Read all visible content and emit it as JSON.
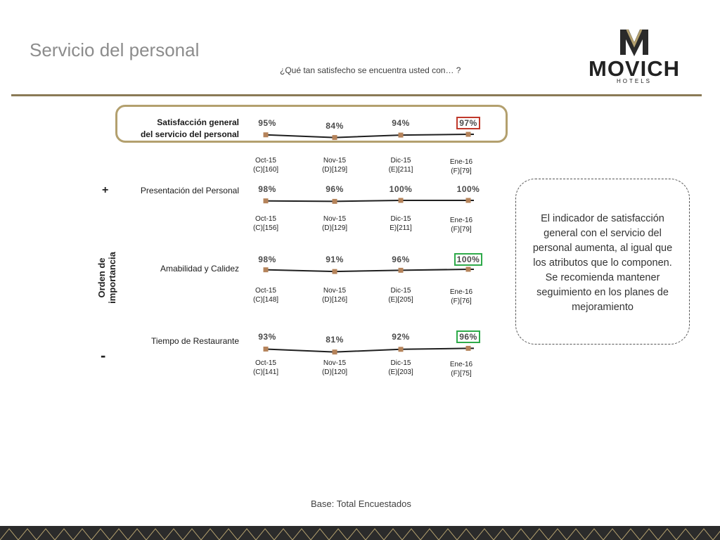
{
  "header": {
    "title": "Servicio del personal",
    "subtitle": "¿Qué tan satisfecho se encuentra usted con… ?"
  },
  "logo": {
    "name": "MOVICH",
    "sub": "HOTELS"
  },
  "side": {
    "axis_title": "Orden de importancia",
    "plus": "+",
    "minus": "-"
  },
  "note": "El indicador de satisfacción general con el servicio del personal aumenta, al igual que los atributos que lo componen. Se recomienda mantener seguimiento en los planes de mejoramiento",
  "base": "Base: Total Encuestados",
  "colors": {
    "accent": "#8a7a56",
    "marker": "#b5835a",
    "highlight_red": "#c0392b",
    "highlight_green": "#2eaa4a"
  },
  "chart_data": [
    {
      "type": "line",
      "label": "Satisfacción general del servicio del personal",
      "label_lines": [
        "Satisfacción general",
        "del servicio del personal"
      ],
      "categories": [
        "Oct-15",
        "Nov-15",
        "Dic-15",
        "Ene-16"
      ],
      "bases": [
        "(C)[160]",
        "(D)[129]",
        "(E)[211]",
        "(F)[79]"
      ],
      "value_labels": [
        "95%",
        "84%",
        "94%",
        "97%"
      ],
      "values": [
        95,
        84,
        94,
        97
      ],
      "highlight": {
        "index": 3,
        "color": "red"
      }
    },
    {
      "type": "line",
      "label": "Presentación del Personal",
      "categories": [
        "Oct-15",
        "Nov-15",
        "Dic-15",
        "Ene-16"
      ],
      "bases": [
        "(C)[156]",
        "(D)[129]",
        "E)[211]",
        "(F)[79]"
      ],
      "value_labels": [
        "98%",
        "96%",
        "100%",
        "100%"
      ],
      "values": [
        98,
        96,
        100,
        100
      ]
    },
    {
      "type": "line",
      "label": "Amabilidad y Calidez",
      "categories": [
        "Oct-15",
        "Nov-15",
        "Dic-15",
        "Ene-16"
      ],
      "bases": [
        "(C)[148]",
        "(D)[126]",
        "(E)[205]",
        "(F)[76]"
      ],
      "value_labels": [
        "98%",
        "91%",
        "96%",
        "100%"
      ],
      "values": [
        98,
        91,
        96,
        100
      ],
      "highlight": {
        "index": 3,
        "color": "green"
      }
    },
    {
      "type": "line",
      "label": "Tiempo de Restaurante",
      "categories": [
        "Oct-15",
        "Nov-15",
        "Dic-15",
        "Ene-16"
      ],
      "bases": [
        "(C)[141]",
        "(D)[120]",
        "(E)[203]",
        "(F)[75]"
      ],
      "value_labels": [
        "93%",
        "81%",
        "92%",
        "96%"
      ],
      "values": [
        93,
        81,
        92,
        96
      ],
      "highlight": {
        "index": 3,
        "color": "green"
      }
    }
  ]
}
